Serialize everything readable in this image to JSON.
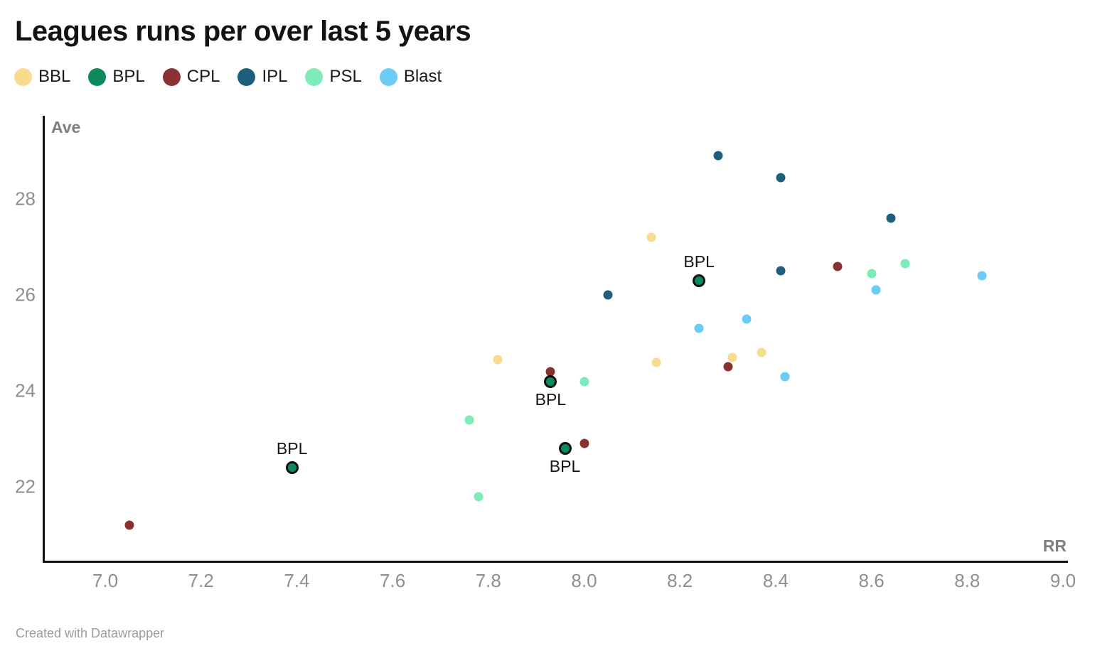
{
  "title": "Leagues runs per over last 5 years",
  "footer": "Created with Datawrapper",
  "chart_data": {
    "type": "scatter",
    "title": "Leagues runs per over last 5 years",
    "xlabel": "RR",
    "ylabel": "Ave",
    "xlim": [
      6.87,
      9.01
    ],
    "ylim": [
      20.4,
      29.7
    ],
    "x_tick_values": [
      7.0,
      7.2,
      7.4,
      7.6,
      7.8,
      8.0,
      8.2,
      8.4,
      8.6,
      8.8,
      9.0
    ],
    "x_tick_labels": [
      "7.0",
      "7.2",
      "7.4",
      "7.6",
      "7.8",
      "8.0",
      "8.2",
      "8.4",
      "8.6",
      "8.8",
      "9.0"
    ],
    "y_tick_values": [
      22,
      24,
      26,
      28
    ],
    "y_tick_labels": [
      "22",
      "24",
      "26",
      "28"
    ],
    "grid": false,
    "legend_position": "top-left",
    "series": [
      {
        "name": "BBL",
        "color": "#F8DB8C",
        "points": [
          {
            "x": 8.14,
            "y": 27.2
          },
          {
            "x": 7.82,
            "y": 24.65
          },
          {
            "x": 8.15,
            "y": 24.6
          },
          {
            "x": 8.31,
            "y": 24.7
          },
          {
            "x": 8.37,
            "y": 24.8
          }
        ]
      },
      {
        "name": "BPL",
        "color": "#0D8A5C",
        "highlighted": true,
        "points": [
          {
            "x": 8.24,
            "y": 26.3,
            "label": "BPL",
            "label_pos": "above"
          },
          {
            "x": 7.93,
            "y": 24.2,
            "label": "BPL",
            "label_pos": "below"
          },
          {
            "x": 7.96,
            "y": 22.8,
            "label": "BPL",
            "label_pos": "below"
          },
          {
            "x": 7.39,
            "y": 22.4,
            "label": "BPL",
            "label_pos": "above"
          }
        ]
      },
      {
        "name": "CPL",
        "color": "#8A3232",
        "points": [
          {
            "x": 8.53,
            "y": 26.6
          },
          {
            "x": 8.3,
            "y": 24.5
          },
          {
            "x": 7.93,
            "y": 24.4
          },
          {
            "x": 8.0,
            "y": 22.9
          },
          {
            "x": 7.05,
            "y": 21.2
          }
        ]
      },
      {
        "name": "IPL",
        "color": "#1E5F7E",
        "points": [
          {
            "x": 8.28,
            "y": 28.9
          },
          {
            "x": 8.41,
            "y": 28.45
          },
          {
            "x": 8.64,
            "y": 27.6
          },
          {
            "x": 8.41,
            "y": 26.5
          },
          {
            "x": 8.05,
            "y": 26.0
          }
        ]
      },
      {
        "name": "PSL",
        "color": "#7EECB8",
        "points": [
          {
            "x": 8.67,
            "y": 26.65
          },
          {
            "x": 8.6,
            "y": 26.45
          },
          {
            "x": 8.0,
            "y": 24.2
          },
          {
            "x": 7.76,
            "y": 23.4
          },
          {
            "x": 7.78,
            "y": 21.8
          }
        ]
      },
      {
        "name": "Blast",
        "color": "#6BCDF5",
        "points": [
          {
            "x": 8.83,
            "y": 26.4
          },
          {
            "x": 8.61,
            "y": 26.1
          },
          {
            "x": 8.34,
            "y": 25.5
          },
          {
            "x": 8.24,
            "y": 25.3
          },
          {
            "x": 8.42,
            "y": 24.3
          }
        ]
      }
    ]
  }
}
